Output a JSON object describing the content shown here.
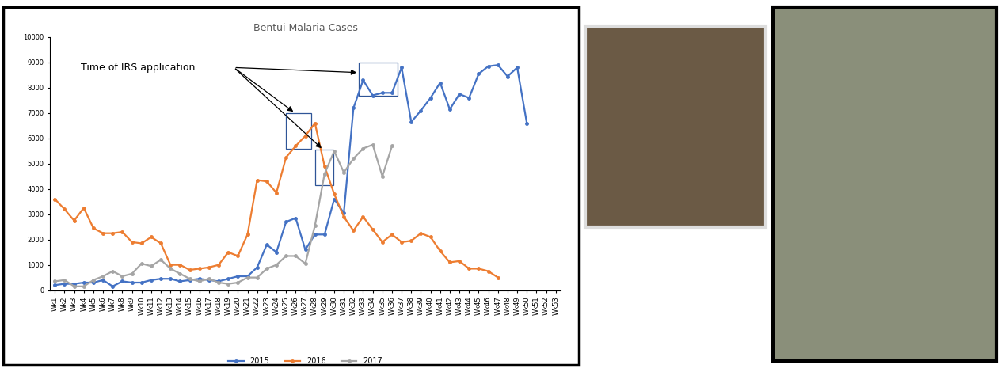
{
  "chart_data": {
    "type": "line",
    "title": "Bentui Malaria Cases",
    "categories": [
      "Wk1",
      "Wk2",
      "Wk3",
      "Wk4",
      "Wk5",
      "Wk6",
      "Wk7",
      "Wk8",
      "Wk9",
      "Wk10",
      "Wk11",
      "Wk12",
      "Wk13",
      "Wk14",
      "Wk15",
      "Wk16",
      "Wk17",
      "Wk18",
      "Wk19",
      "Wk20",
      "Wk21",
      "Wk22",
      "Wk23",
      "Wk24",
      "Wk25",
      "Wk26",
      "Wk27",
      "Wk28",
      "Wk29",
      "Wk30",
      "Wk31",
      "Wk32",
      "Wk33",
      "Wk34",
      "Wk35",
      "Wk36",
      "Wk37",
      "Wk38",
      "Wk39",
      "Wk40",
      "Wk41",
      "Wk42",
      "Wk43",
      "Wk44",
      "Wk45",
      "Wk46",
      "Wk47",
      "Wk48",
      "Wk49",
      "Wk50",
      "Wk51",
      "Wk52",
      "Wk53"
    ],
    "series": [
      {
        "name": "2015",
        "color": "#4472c4",
        "marker": "o",
        "values": [
          200,
          250,
          250,
          300,
          300,
          400,
          150,
          350,
          300,
          300,
          400,
          450,
          450,
          350,
          400,
          450,
          400,
          350,
          450,
          550,
          550,
          900,
          1800,
          1500,
          2700,
          2850,
          1600,
          2200,
          2200,
          3600,
          3050,
          7200,
          8300,
          7700,
          7800,
          7800,
          8800,
          6650,
          7100,
          7600,
          8200,
          7150,
          7750,
          7600,
          8550,
          8850,
          8900,
          8450,
          8800,
          6600,
          null,
          null,
          null
        ]
      },
      {
        "name": "2016",
        "color": "#ed7d31",
        "marker": "o",
        "values": [
          3600,
          3200,
          2750,
          3250,
          2450,
          2250,
          2250,
          2300,
          1900,
          1850,
          2100,
          1850,
          1000,
          1000,
          800,
          850,
          900,
          1000,
          1500,
          1350,
          2200,
          4350,
          4300,
          3850,
          5250,
          5700,
          6100,
          6600,
          4900,
          3800,
          2900,
          2350,
          2900,
          2400,
          1900,
          2200,
          1900,
          1950,
          2250,
          2100,
          1550,
          1100,
          1150,
          850,
          850,
          750,
          500,
          null,
          null,
          null,
          null,
          null,
          null
        ]
      },
      {
        "name": "2017",
        "color": "#a5a5a5",
        "marker": "o",
        "values": [
          350,
          400,
          150,
          150,
          400,
          550,
          750,
          550,
          650,
          1050,
          950,
          1200,
          850,
          650,
          450,
          350,
          450,
          300,
          250,
          300,
          500,
          500,
          850,
          1000,
          1350,
          1350,
          1050,
          2550,
          4600,
          5500,
          4650,
          5200,
          5600,
          5750,
          4500,
          5700,
          null,
          null,
          null,
          null,
          null,
          null,
          null,
          null,
          null,
          null,
          null,
          null,
          null,
          null,
          null,
          null,
          null
        ]
      }
    ],
    "ylim": [
      0,
      10000
    ],
    "yticks": [
      0,
      1000,
      2000,
      3000,
      4000,
      5000,
      6000,
      7000,
      8000,
      9000,
      10000
    ],
    "grid": false,
    "legend": "lower center",
    "annotations": [
      "Time of IRS application"
    ]
  }
}
